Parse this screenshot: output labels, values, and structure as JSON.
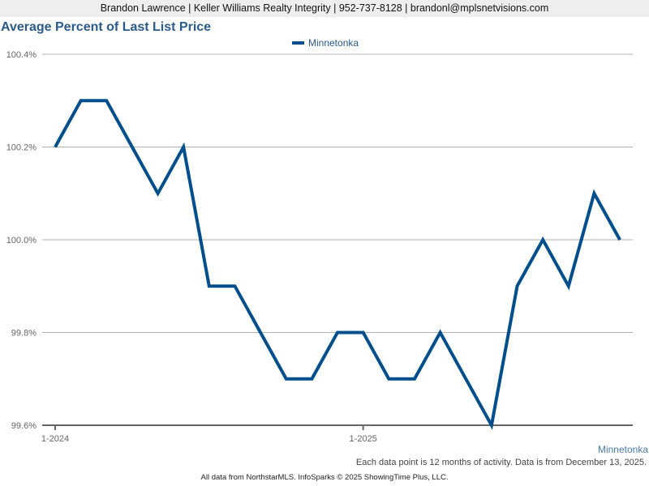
{
  "header": {
    "contact_line": "Brandon Lawrence | Keller Williams Realty Integrity | 952-737-8128 | brandonl@mplsnetvisions.com"
  },
  "chart_data": {
    "type": "line",
    "title": "Average Percent of Last List Price",
    "xlabel": "",
    "ylabel": "",
    "ylim": [
      99.6,
      100.4
    ],
    "yticks": [
      "100.4%",
      "100.2%",
      "100.0%",
      "99.8%",
      "99.6%"
    ],
    "xtick_labels": [
      "1-2024",
      "1-2025"
    ],
    "legend": [
      "Minnetonka"
    ],
    "legend_position": "top-center",
    "grid": true,
    "x": [
      "1-2024",
      "2-2024",
      "3-2024",
      "4-2024",
      "5-2024",
      "6-2024",
      "7-2024",
      "8-2024",
      "9-2024",
      "10-2024",
      "11-2024",
      "12-2024",
      "1-2025",
      "2-2025",
      "3-2025",
      "4-2025",
      "5-2025",
      "6-2025",
      "7-2025",
      "8-2025",
      "9-2025",
      "10-2025",
      "11-2025"
    ],
    "series": [
      {
        "name": "Minnetonka",
        "color": "#004f8c",
        "values": [
          100.2,
          100.3,
          100.3,
          100.2,
          100.1,
          100.2,
          99.9,
          99.9,
          99.8,
          99.7,
          99.7,
          99.8,
          99.8,
          99.7,
          99.7,
          99.8,
          99.7,
          99.6,
          99.9,
          100.0,
          99.9,
          100.1,
          100.0
        ]
      }
    ]
  },
  "chart": {
    "title": "Average Percent of Last List Price",
    "legend_label": "Minnetonka",
    "series_label": "Minnetonka",
    "note": "Each data point is 12 months of activity. Data is from December 13, 2025."
  },
  "footer": {
    "text": "All data from NorthstarMLS. InfoSparks © 2025 ShowingTime Plus, LLC."
  }
}
